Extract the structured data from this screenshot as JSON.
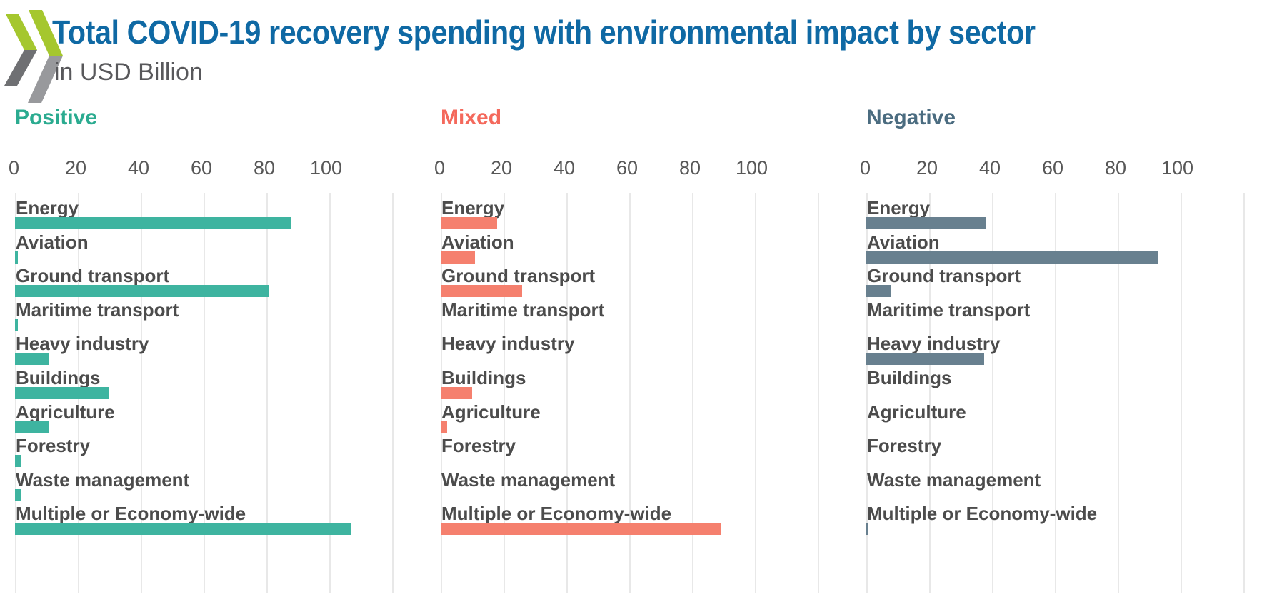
{
  "page": {
    "background": "#ffffff"
  },
  "logo": {
    "name": "oecd-chevrons-logo",
    "green": "#a5c72e",
    "gray_front": "#6f7073",
    "gray_back": "#98999c"
  },
  "header": {
    "title": "Total COVID-19 recovery spending with environmental impact by sector",
    "subtitle": "in USD Billion",
    "title_color": "#0f69a4",
    "subtitle_color": "#58585b"
  },
  "chart_data": {
    "type": "bar",
    "orientation": "horizontal",
    "unit": "USD Billion",
    "title": "Total COVID-19 recovery spending with environmental impact by sector",
    "categories": [
      "Energy",
      "Aviation",
      "Ground transport",
      "Maritime transport",
      "Heavy industry",
      "Buildings",
      "Agriculture",
      "Forestry",
      "Waste management",
      "Multiple or Economy-wide"
    ],
    "x_ticks": [
      0,
      20,
      40,
      60,
      80,
      100
    ],
    "xlim": [
      0,
      120
    ],
    "grid": true,
    "gridline_color": "#e8e8e8",
    "label_color": "#4c4c4c",
    "tick_color": "#575757",
    "series": [
      {
        "name": "Positive",
        "header_color": "#2bab90",
        "bar_color": "#3eb4a0",
        "values": [
          88,
          1,
          81,
          1,
          11,
          30,
          11,
          2,
          2,
          107
        ]
      },
      {
        "name": "Mixed",
        "header_color": "#f4695c",
        "bar_color": "#f5806e",
        "values": [
          18,
          11,
          26,
          0,
          0,
          10,
          2,
          0,
          0,
          89
        ]
      },
      {
        "name": "Negative",
        "header_color": "#4b6c80",
        "bar_color": "#68808f",
        "values": [
          38,
          93,
          8,
          0,
          37.5,
          0,
          0,
          0,
          0,
          0.5
        ]
      }
    ]
  }
}
